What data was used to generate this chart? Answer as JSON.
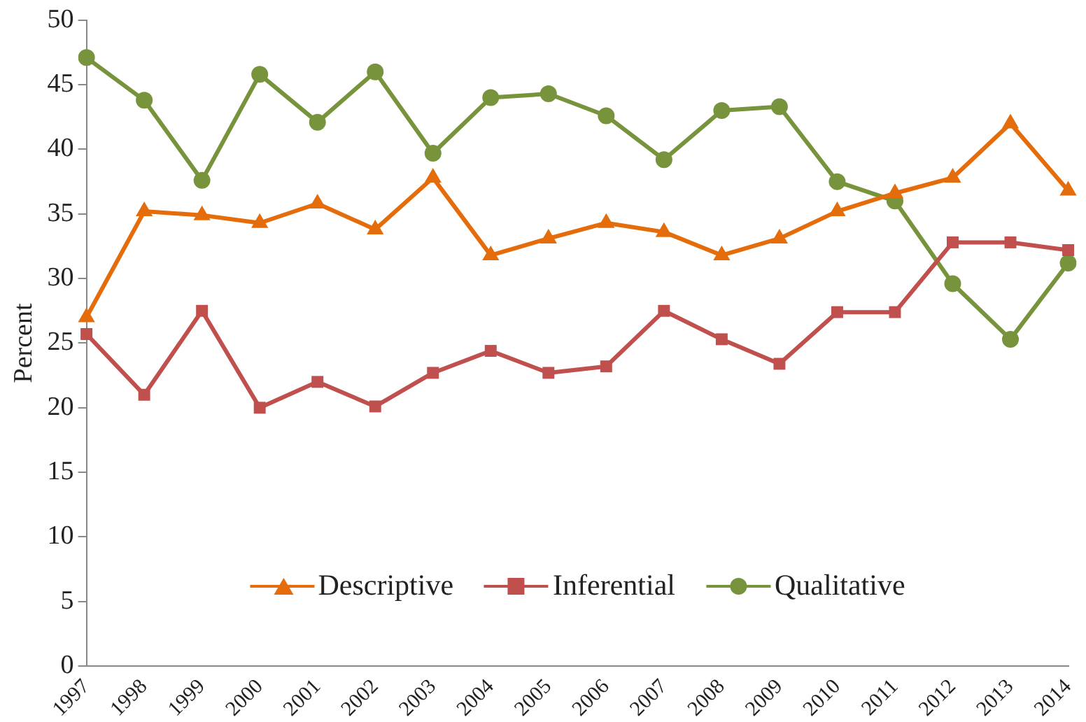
{
  "chart_data": {
    "type": "line",
    "ylabel": "Percent",
    "categories": [
      "1997",
      "1998",
      "1999",
      "2000",
      "2001",
      "2002",
      "2003",
      "2004",
      "2005",
      "2006",
      "2007",
      "2008",
      "2009",
      "2010",
      "2011",
      "2012",
      "2013",
      "2014"
    ],
    "series": [
      {
        "name": "Descriptive",
        "color": "#e46c0a",
        "marker": "triangle",
        "values": [
          27.0,
          35.2,
          34.9,
          34.3,
          35.8,
          33.8,
          37.8,
          31.8,
          33.1,
          34.3,
          33.6,
          31.8,
          33.1,
          35.2,
          36.6,
          37.8,
          42.0,
          36.8
        ]
      },
      {
        "name": "Inferential",
        "color": "#c0504d",
        "marker": "square",
        "values": [
          25.7,
          21.0,
          27.5,
          20.0,
          22.0,
          20.1,
          22.7,
          24.4,
          22.7,
          23.2,
          27.5,
          25.3,
          23.4,
          27.4,
          27.4,
          32.8,
          32.8,
          32.2
        ]
      },
      {
        "name": "Qualitative",
        "color": "#77933c",
        "marker": "circle",
        "values": [
          47.1,
          43.8,
          37.6,
          45.8,
          42.1,
          46.0,
          39.7,
          44.0,
          44.3,
          42.6,
          39.2,
          43.0,
          43.3,
          37.5,
          36.0,
          29.6,
          25.3,
          31.2
        ]
      }
    ],
    "ylim": [
      0,
      50
    ],
    "yticks": [
      0,
      5,
      10,
      15,
      20,
      25,
      30,
      35,
      40,
      45,
      50
    ],
    "grid": false,
    "legend": "bottom",
    "line_style": "solid"
  }
}
